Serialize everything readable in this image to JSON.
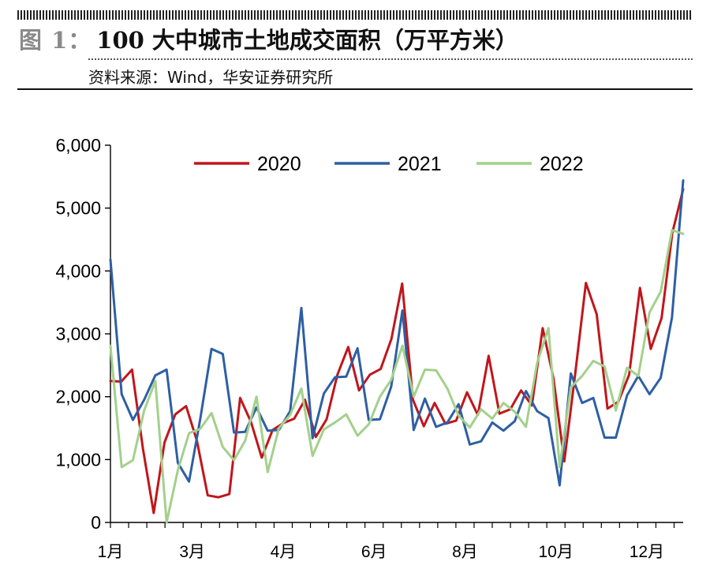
{
  "header": {
    "figure_label": "图 1：",
    "title": "100 大中城市土地成交面积（万平方米）",
    "source": "资料来源：Wind，华安证券研究所"
  },
  "chart_data": {
    "type": "line",
    "title": "100 大中城市土地成交面积（万平方米）",
    "xlabel": "",
    "ylabel": "",
    "ylim": [
      0,
      6000
    ],
    "yticks": [
      "0",
      "1,000",
      "2,000",
      "3,000",
      "4,000",
      "5,000",
      "6,000"
    ],
    "yticks_values": [
      0,
      1000,
      2000,
      3000,
      4000,
      5000,
      6000
    ],
    "x_tick_labels": [
      "1月",
      "3月",
      "4月",
      "6月",
      "8月",
      "10月",
      "12月"
    ],
    "x_tick_weeks": [
      1,
      10,
      20,
      30,
      40,
      50,
      60
    ],
    "x_range": [
      1,
      64
    ],
    "grid": false,
    "legend": "top",
    "series": [
      {
        "name": "2020",
        "color": "#c0161c",
        "values": [
          2250,
          2240,
          2430,
          1180,
          150,
          1270,
          1720,
          1850,
          1300,
          430,
          400,
          450,
          1980,
          1600,
          1030,
          1470,
          1580,
          1650,
          1950,
          1360,
          1640,
          2350,
          2790,
          2100,
          2350,
          2440,
          2920,
          3800,
          1950,
          1530,
          1900,
          1570,
          1620,
          2070,
          1710,
          2650,
          1730,
          1800,
          2100,
          1860,
          3090,
          2290,
          970,
          2350,
          3810,
          3310,
          1810,
          1920,
          2350,
          3730,
          2760,
          3250,
          4610,
          5300
        ]
      },
      {
        "name": "2021",
        "color": "#2e5fa3",
        "values": [
          4180,
          2040,
          1630,
          1950,
          2340,
          2430,
          950,
          650,
          1650,
          2760,
          2680,
          1430,
          1440,
          1830,
          1460,
          1470,
          1770,
          3410,
          1340,
          2050,
          2310,
          2320,
          2770,
          1630,
          1640,
          2160,
          3370,
          1470,
          1970,
          1520,
          1590,
          1880,
          1240,
          1290,
          1590,
          1460,
          1610,
          2090,
          1770,
          1660,
          590,
          2370,
          1900,
          1980,
          1350,
          1350,
          2020,
          2330,
          2040,
          2300,
          3260,
          5440
        ]
      },
      {
        "name": "2022",
        "color": "#a3d08c",
        "values": [
          2810,
          880,
          990,
          1780,
          2250,
          0,
          830,
          1420,
          1490,
          1740,
          1200,
          990,
          1300,
          2000,
          800,
          1500,
          1710,
          2130,
          1060,
          1480,
          1590,
          1720,
          1380,
          1560,
          2000,
          2270,
          2810,
          2000,
          2430,
          2420,
          2130,
          1700,
          1510,
          1800,
          1650,
          1900,
          1760,
          1520,
          2540,
          3090,
          880,
          2150,
          2330,
          2570,
          2480,
          1780,
          2460,
          2330,
          3340,
          3670,
          4650,
          4590
        ]
      }
    ]
  }
}
